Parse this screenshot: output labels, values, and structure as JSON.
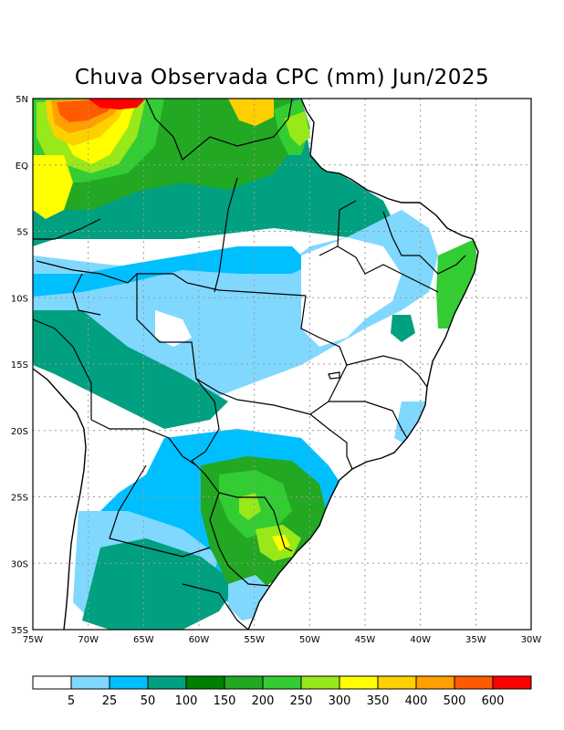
{
  "title": "Chuva Observada CPC (mm) Jun/2025",
  "map": {
    "lon_range": [
      -75,
      -30
    ],
    "lat_range": [
      -35,
      5
    ],
    "grid": true,
    "lon_ticks": [
      {
        "value": -75,
        "label": "75W"
      },
      {
        "value": -70,
        "label": "70W"
      },
      {
        "value": -65,
        "label": "65W"
      },
      {
        "value": -60,
        "label": "60W"
      },
      {
        "value": -55,
        "label": "55W"
      },
      {
        "value": -50,
        "label": "50W"
      },
      {
        "value": -45,
        "label": "45W"
      },
      {
        "value": -40,
        "label": "40W"
      },
      {
        "value": -35,
        "label": "35W"
      },
      {
        "value": -30,
        "label": "30W"
      }
    ],
    "lat_ticks": [
      {
        "value": 5,
        "label": "5N"
      },
      {
        "value": 0,
        "label": "EQ"
      },
      {
        "value": -5,
        "label": "5S"
      },
      {
        "value": -10,
        "label": "10S"
      },
      {
        "value": -15,
        "label": "15S"
      },
      {
        "value": -20,
        "label": "20S"
      },
      {
        "value": -25,
        "label": "25S"
      },
      {
        "value": -30,
        "label": "30S"
      },
      {
        "value": -35,
        "label": "35S"
      }
    ]
  },
  "colorbar": {
    "colors": [
      "#ffffff",
      "#80d8ff",
      "#00bfff",
      "#00a080",
      "#008000",
      "#22a822",
      "#33cc33",
      "#99e81a",
      "#ffff00",
      "#ffd000",
      "#ffa000",
      "#ff5a00",
      "#ff0000"
    ],
    "thresholds": [
      "5",
      "25",
      "50",
      "100",
      "150",
      "200",
      "250",
      "300",
      "350",
      "400",
      "500",
      "600"
    ]
  }
}
